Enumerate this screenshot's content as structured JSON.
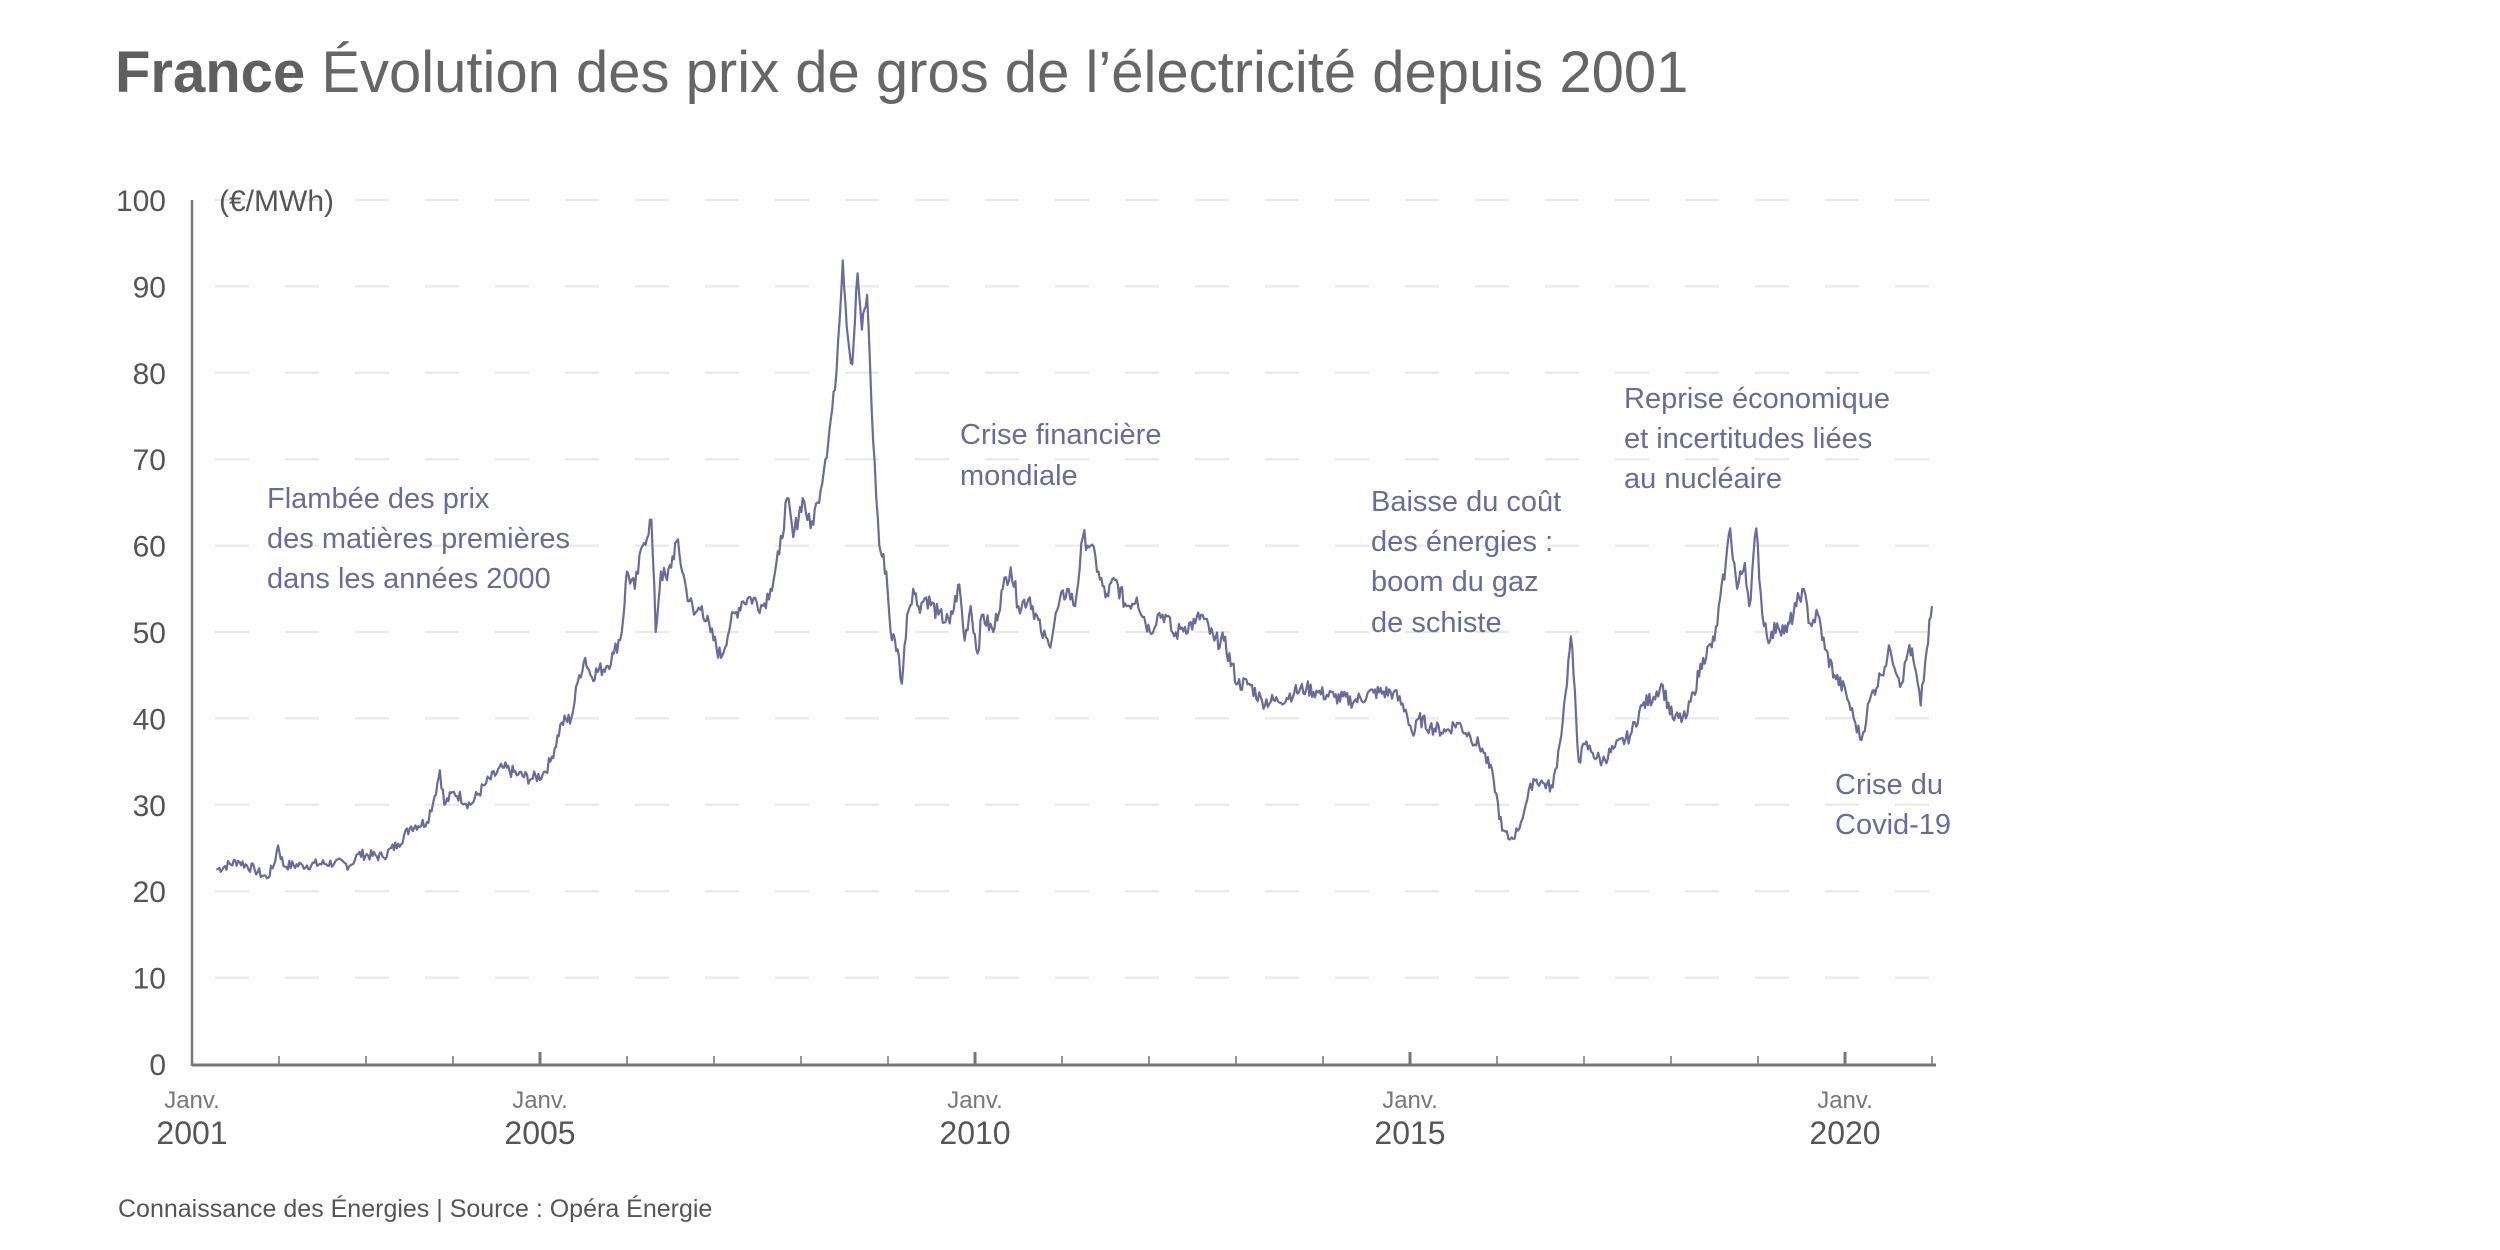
{
  "title": {
    "bold": "France",
    "rest": "Évolution des prix de gros de l’électricité depuis 2001"
  },
  "footer": "Connaissance des Énergies | Source : Opéra Énergie",
  "chart_data": {
    "type": "line",
    "title": "France Évolution des prix de gros de l’électricité depuis 2001",
    "ylabel": "(€/MWh)",
    "xlabel": "",
    "ylim": [
      0,
      100
    ],
    "xlim": [
      2001,
      2021
    ],
    "yticks": [
      "0",
      "10",
      "20",
      "30",
      "40",
      "50",
      "60",
      "70",
      "80",
      "90",
      "100"
    ],
    "xticks": [
      {
        "year": 2001,
        "month": "Janv.",
        "label": "2001"
      },
      {
        "year": 2005,
        "month": "Janv.",
        "label": "2005"
      },
      {
        "year": 2010,
        "month": "Janv.",
        "label": "2010"
      },
      {
        "year": 2015,
        "month": "Janv.",
        "label": "2015"
      },
      {
        "year": 2020,
        "month": "Janv.",
        "label": "2020"
      }
    ],
    "grid": true,
    "line_color": "#6b6a9c",
    "series": [
      {
        "name": "Prix de gros (€/MWh)",
        "points": [
          [
            2001.28,
            22.5
          ],
          [
            2001.53,
            23.5
          ],
          [
            2001.72,
            22.5
          ],
          [
            2001.86,
            21.5
          ],
          [
            2001.94,
            23
          ],
          [
            2001.99,
            25.3
          ],
          [
            2002.05,
            23
          ],
          [
            2002.27,
            23
          ],
          [
            2002.64,
            23.3
          ],
          [
            2002.82,
            23
          ],
          [
            2002.91,
            24.3
          ],
          [
            2003.19,
            24
          ],
          [
            2003.37,
            25.5
          ],
          [
            2003.52,
            27.5
          ],
          [
            2003.7,
            28
          ],
          [
            2003.79,
            31
          ],
          [
            2003.85,
            34
          ],
          [
            2003.9,
            30
          ],
          [
            2004.01,
            31.5
          ],
          [
            2004.2,
            30
          ],
          [
            2004.38,
            32.5
          ],
          [
            2004.57,
            34.3
          ],
          [
            2004.75,
            33.5
          ],
          [
            2004.9,
            33
          ],
          [
            2005.03,
            33.5
          ],
          [
            2005.12,
            35
          ],
          [
            2005.25,
            39.5
          ],
          [
            2005.36,
            40
          ],
          [
            2005.45,
            45
          ],
          [
            2005.52,
            47
          ],
          [
            2005.58,
            45
          ],
          [
            2005.76,
            46
          ],
          [
            2005.85,
            47.5
          ],
          [
            2005.94,
            50
          ],
          [
            2006.0,
            57
          ],
          [
            2006.09,
            55
          ],
          [
            2006.18,
            60
          ],
          [
            2006.28,
            63
          ],
          [
            2006.33,
            50
          ],
          [
            2006.39,
            57
          ],
          [
            2006.46,
            56
          ],
          [
            2006.57,
            60.5
          ],
          [
            2006.68,
            55
          ],
          [
            2006.77,
            52
          ],
          [
            2006.86,
            53
          ],
          [
            2006.96,
            50
          ],
          [
            2007.08,
            47
          ],
          [
            2007.19,
            51
          ],
          [
            2007.32,
            53.5
          ],
          [
            2007.42,
            54
          ],
          [
            2007.56,
            53
          ],
          [
            2007.65,
            55
          ],
          [
            2007.75,
            59
          ],
          [
            2007.84,
            65.5
          ],
          [
            2007.91,
            61
          ],
          [
            2008.02,
            65.5
          ],
          [
            2008.11,
            62
          ],
          [
            2008.19,
            65
          ],
          [
            2008.28,
            70
          ],
          [
            2008.39,
            78
          ],
          [
            2008.48,
            93
          ],
          [
            2008.54,
            84
          ],
          [
            2008.59,
            81
          ],
          [
            2008.65,
            91.5
          ],
          [
            2008.7,
            85
          ],
          [
            2008.76,
            89
          ],
          [
            2008.83,
            72
          ],
          [
            2008.9,
            60
          ],
          [
            2008.98,
            57
          ],
          [
            2009.03,
            50
          ],
          [
            2009.11,
            48
          ],
          [
            2009.16,
            44
          ],
          [
            2009.22,
            52
          ],
          [
            2009.29,
            55
          ],
          [
            2009.35,
            53
          ],
          [
            2009.44,
            54
          ],
          [
            2009.58,
            52
          ],
          [
            2009.71,
            51
          ],
          [
            2009.82,
            55.5
          ],
          [
            2009.88,
            49
          ],
          [
            2009.95,
            53
          ],
          [
            2010.03,
            47.5
          ],
          [
            2010.08,
            52
          ],
          [
            2010.21,
            50
          ],
          [
            2010.32,
            55
          ],
          [
            2010.41,
            57.5
          ],
          [
            2010.5,
            53
          ],
          [
            2010.63,
            54
          ],
          [
            2010.76,
            50
          ],
          [
            2010.85,
            48.5
          ],
          [
            2010.96,
            53
          ],
          [
            2011.06,
            55
          ],
          [
            2011.15,
            53
          ],
          [
            2011.24,
            61
          ],
          [
            2011.33,
            60
          ],
          [
            2011.42,
            57
          ],
          [
            2011.5,
            54
          ],
          [
            2011.61,
            56
          ],
          [
            2011.74,
            53
          ],
          [
            2011.86,
            54
          ],
          [
            2012.01,
            50
          ],
          [
            2012.1,
            52
          ],
          [
            2012.19,
            52
          ],
          [
            2012.29,
            49.5
          ],
          [
            2012.38,
            50.5
          ],
          [
            2012.53,
            51
          ],
          [
            2012.6,
            52
          ],
          [
            2012.75,
            49
          ],
          [
            2012.86,
            49
          ],
          [
            2013.02,
            44
          ],
          [
            2013.15,
            44
          ],
          [
            2013.3,
            42
          ],
          [
            2013.48,
            42
          ],
          [
            2013.67,
            43
          ],
          [
            2013.81,
            43.5
          ],
          [
            2013.94,
            43
          ],
          [
            2014.13,
            42.5
          ],
          [
            2014.36,
            42
          ],
          [
            2014.58,
            43
          ],
          [
            2014.81,
            43
          ],
          [
            2014.95,
            41
          ],
          [
            2015.04,
            38
          ],
          [
            2015.1,
            40
          ],
          [
            2015.23,
            39
          ],
          [
            2015.41,
            38.5
          ],
          [
            2015.54,
            39.5
          ],
          [
            2015.69,
            38
          ],
          [
            2015.83,
            36.5
          ],
          [
            2015.96,
            33
          ],
          [
            2016.06,
            27
          ],
          [
            2016.15,
            26
          ],
          [
            2016.24,
            27
          ],
          [
            2016.33,
            30
          ],
          [
            2016.42,
            33
          ],
          [
            2016.53,
            32.5
          ],
          [
            2016.64,
            32
          ],
          [
            2016.72,
            37
          ],
          [
            2016.79,
            43
          ],
          [
            2016.85,
            49.5
          ],
          [
            2016.88,
            45
          ],
          [
            2016.94,
            35
          ],
          [
            2017.01,
            37
          ],
          [
            2017.1,
            36
          ],
          [
            2017.21,
            35
          ],
          [
            2017.34,
            36.5
          ],
          [
            2017.53,
            38
          ],
          [
            2017.67,
            41.5
          ],
          [
            2017.8,
            42.5
          ],
          [
            2017.89,
            44
          ],
          [
            2018.02,
            40
          ],
          [
            2018.17,
            40
          ],
          [
            2018.26,
            43
          ],
          [
            2018.37,
            47
          ],
          [
            2018.5,
            49
          ],
          [
            2018.63,
            58
          ],
          [
            2018.68,
            62
          ],
          [
            2018.76,
            55
          ],
          [
            2018.85,
            58
          ],
          [
            2018.9,
            53
          ],
          [
            2018.98,
            62
          ],
          [
            2019.05,
            52
          ],
          [
            2019.14,
            49
          ],
          [
            2019.22,
            51
          ],
          [
            2019.33,
            50
          ],
          [
            2019.44,
            53
          ],
          [
            2019.51,
            55
          ],
          [
            2019.6,
            51
          ],
          [
            2019.69,
            52
          ],
          [
            2019.77,
            48
          ],
          [
            2019.88,
            45
          ],
          [
            2020.01,
            43
          ],
          [
            2020.1,
            40
          ],
          [
            2020.19,
            37.5
          ],
          [
            2020.28,
            42
          ],
          [
            2020.41,
            45
          ],
          [
            2020.52,
            48
          ],
          [
            2020.65,
            44
          ],
          [
            2020.74,
            48.5
          ],
          [
            2020.8,
            46
          ],
          [
            2020.87,
            41.5
          ],
          [
            2020.94,
            48
          ],
          [
            2021.0,
            53
          ]
        ]
      }
    ],
    "annotations": [
      {
        "lines": [
          "Flambée des prix",
          "des matières premières",
          "dans les années 2000"
        ]
      },
      {
        "lines": [
          "Crise financière",
          "mondiale"
        ]
      },
      {
        "lines": [
          "Baisse du coût",
          "des énergies :",
          "boom du gaz",
          "de schiste"
        ]
      },
      {
        "lines": [
          "Reprise économique",
          "et incertitudes liées",
          "au nucléaire"
        ]
      },
      {
        "lines": [
          "Crise du",
          "Covid-19"
        ]
      }
    ]
  }
}
